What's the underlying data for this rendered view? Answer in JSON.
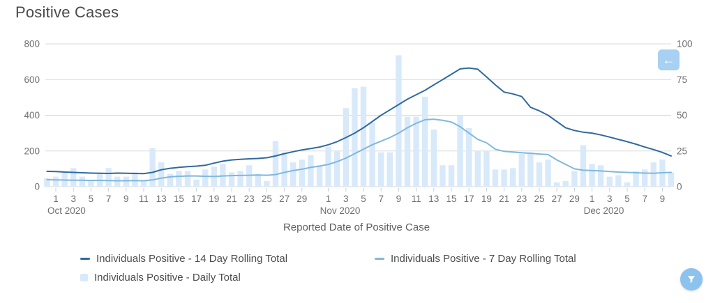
{
  "page": {
    "title": "Positive Cases"
  },
  "buttons": {
    "back": {
      "icon": "arrow-left-icon",
      "glyph": "←",
      "bg": "#a7d0f2"
    },
    "filter": {
      "icon": "funnel-icon",
      "bg": "#8cc2ee"
    }
  },
  "colors": {
    "grid": "#d9d9d9",
    "tick_mark": "#cccccc",
    "axis_text": "#6f6f6f",
    "title_text": "#4a4a4a",
    "line_14day": "#2f6a9e",
    "line_7day": "#7fb8de",
    "bar_daily": "#d8e9fa"
  },
  "chart_data": {
    "type": "combo",
    "title": "Positive Cases",
    "x_axis": {
      "title": "Reported Date of Positive Case",
      "start_date": "Sep 30 2020",
      "end_date": "Dec 10 2020",
      "months": [
        {
          "label": "",
          "days": 1,
          "ticks": []
        },
        {
          "label": "Oct 2020",
          "days": 31,
          "ticks": [
            "1",
            "3",
            "5",
            "7",
            "9",
            "11",
            "13",
            "15",
            "17",
            "19",
            "21",
            "23",
            "25",
            "27",
            "29"
          ]
        },
        {
          "label": "Nov 2020",
          "days": 30,
          "ticks": [
            "1",
            "3",
            "5",
            "7",
            "9",
            "11",
            "13",
            "15",
            "17",
            "19",
            "21",
            "23",
            "25",
            "27",
            "29"
          ]
        },
        {
          "label": "Dec 2020",
          "days": 10,
          "ticks": [
            "1",
            "3",
            "5",
            "7",
            "9"
          ]
        }
      ]
    },
    "y_left": {
      "min": 0,
      "max": 800,
      "ticks": [
        0,
        200,
        400,
        600,
        800
      ]
    },
    "y_right": {
      "min": 0,
      "max": 100,
      "ticks": [
        0,
        25,
        50,
        75,
        100
      ]
    },
    "grid": true,
    "legend_position": "bottom",
    "series": [
      {
        "name": "Individuals Positive - 14 Day Rolling Total",
        "type": "line",
        "axis": "left",
        "color": "#2f6a9e",
        "values": [
          86,
          85,
          82,
          80,
          78,
          76,
          75,
          74,
          76,
          75,
          74,
          73,
          80,
          95,
          103,
          108,
          112,
          115,
          120,
          132,
          143,
          150,
          153,
          156,
          158,
          162,
          172,
          185,
          196,
          206,
          214,
          222,
          235,
          252,
          275,
          300,
          330,
          365,
          400,
          430,
          460,
          490,
          515,
          540,
          570,
          600,
          630,
          660,
          665,
          658,
          615,
          570,
          530,
          520,
          505,
          445,
          425,
          400,
          365,
          330,
          315,
          305,
          300,
          290,
          278,
          265,
          252,
          238,
          222,
          208,
          192,
          172
        ]
      },
      {
        "name": "Individuals Positive - 7 Day Rolling Total",
        "type": "line",
        "axis": "left",
        "color": "#7fb8de",
        "values": [
          39,
          38,
          37,
          36,
          36,
          35,
          35,
          34,
          33,
          33,
          34,
          33,
          38,
          48,
          55,
          58,
          60,
          60,
          58,
          57,
          60,
          62,
          63,
          64,
          65,
          64,
          68,
          80,
          90,
          98,
          108,
          115,
          125,
          140,
          160,
          185,
          210,
          235,
          255,
          275,
          300,
          330,
          355,
          375,
          378,
          372,
          362,
          336,
          300,
          265,
          246,
          210,
          198,
          194,
          190,
          187,
          183,
          180,
          150,
          125,
          100,
          92,
          90,
          88,
          85,
          82,
          80,
          78,
          76,
          75,
          78,
          80
        ]
      },
      {
        "name": "Individuals Positive - Daily Total",
        "type": "bar",
        "axis": "right",
        "color": "#d8e9fa",
        "values": [
          6,
          7,
          10,
          13,
          7,
          4,
          10,
          13,
          7,
          7,
          10,
          4,
          27,
          17,
          9,
          11,
          11,
          5,
          12,
          14,
          16,
          10,
          11,
          15,
          9,
          4,
          32,
          24,
          17,
          19,
          22,
          15,
          28,
          25,
          55,
          69,
          70,
          45,
          24,
          24,
          92,
          49,
          49,
          63,
          40,
          15,
          15,
          50,
          41,
          25,
          25,
          12,
          12,
          13,
          23,
          24,
          17,
          19,
          3,
          4,
          11,
          29,
          16,
          15,
          7,
          8,
          3,
          11,
          12,
          17,
          19,
          10
        ]
      }
    ]
  }
}
